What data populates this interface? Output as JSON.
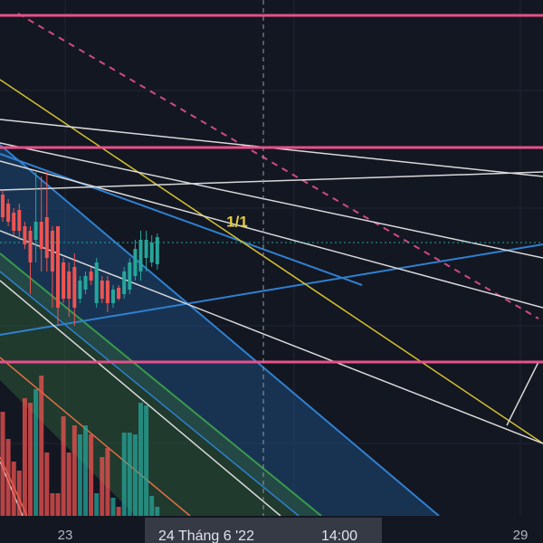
{
  "chart_data": {
    "type": "candlestick",
    "open": [
      355,
      345,
      335,
      338,
      320,
      315,
      305,
      325,
      330,
      315,
      320,
      280,
      270,
      275,
      240,
      250,
      270,
      235,
      260,
      260,
      235,
      252,
      245,
      250,
      265,
      270,
      285,
      280,
      278
    ],
    "high": [
      360,
      350,
      340,
      345,
      325,
      320,
      380,
      375,
      380,
      320,
      320,
      285,
      280,
      290,
      265,
      270,
      275,
      285,
      265,
      265,
      255,
      255,
      275,
      285,
      305,
      315,
      315,
      310,
      312
    ],
    "low": [
      325,
      320,
      310,
      305,
      295,
      245,
      280,
      270,
      270,
      230,
      210,
      235,
      220,
      210,
      235,
      245,
      255,
      230,
      235,
      225,
      230,
      238,
      240,
      245,
      260,
      260,
      270,
      275,
      272
    ],
    "close": [
      330,
      325,
      315,
      315,
      300,
      280,
      325,
      295,
      285,
      270,
      230,
      240,
      240,
      230,
      260,
      265,
      260,
      280,
      240,
      235,
      250,
      240,
      270,
      280,
      295,
      305,
      305,
      302,
      308
    ],
    "volume": [
      115,
      85,
      60,
      50,
      130,
      125,
      140,
      155,
      70,
      25,
      25,
      110,
      70,
      100,
      90,
      100,
      90,
      25,
      65,
      75,
      20,
      10,
      92,
      92,
      90,
      125,
      122,
      22,
      10
    ],
    "up_color": "#26a69a",
    "down_color": "#ef5350",
    "ylim": [
      0,
      570
    ],
    "y2lim": [
      0,
      570
    ],
    "x_labels": [
      "23",
      "29"
    ],
    "crosshair_label": {
      "date": "24 Tháng 6 '22",
      "time": "14:00"
    },
    "annotation": "1/1"
  }
}
